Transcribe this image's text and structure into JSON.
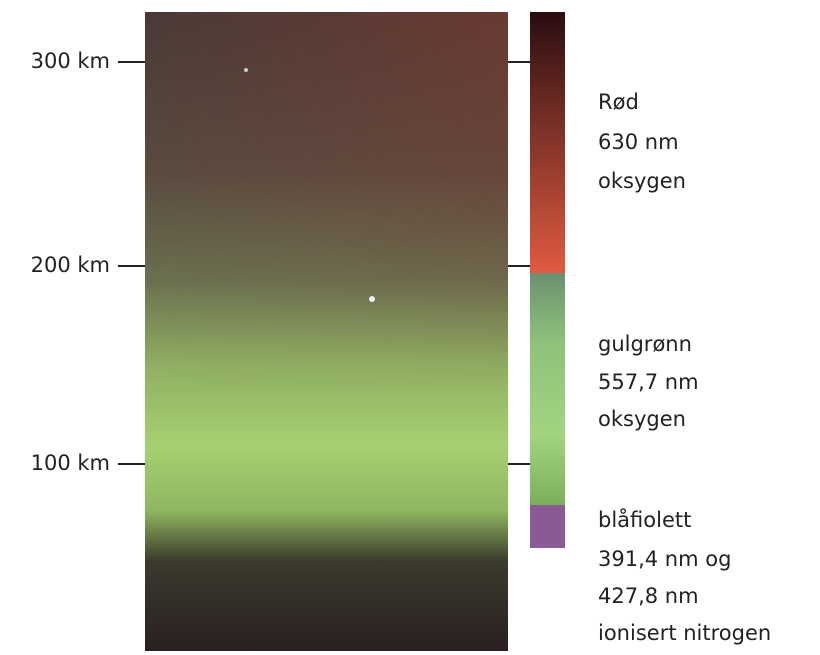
{
  "altitude_labels": [
    "300 km",
    "200 km",
    "100 km"
  ],
  "bands": [
    {
      "lines": [
        "Rød",
        "630 nm",
        "oksygen"
      ]
    },
    {
      "lines": [
        "gulgrønn",
        "557,7 nm",
        "oksygen"
      ]
    },
    {
      "lines": [
        "blåfiolett",
        "391,4 nm og",
        "427,8 nm",
        "ionisert nitrogen"
      ]
    }
  ]
}
